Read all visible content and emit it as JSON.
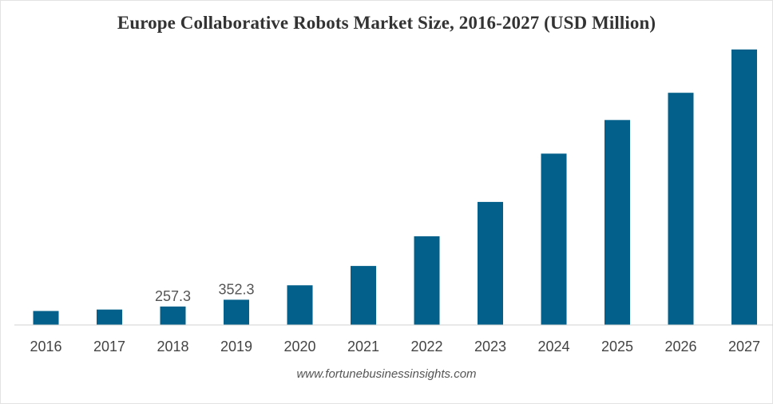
{
  "title": "Europe Collaborative Robots Market Size, 2016-2027 (USD Million)",
  "source": "www.fortunebusinessinsights.com",
  "colors": {
    "bar": "#03608a",
    "axis": "#d0d0d0"
  },
  "chart_data": {
    "type": "bar",
    "title": "Europe Collaborative Robots Market Size, 2016-2027 (USD Million)",
    "xlabel": "",
    "ylabel": "",
    "categories": [
      "2016",
      "2017",
      "2018",
      "2019",
      "2020",
      "2021",
      "2022",
      "2023",
      "2024",
      "2025",
      "2026",
      "2027"
    ],
    "values": [
      195,
      215,
      257.3,
      352.3,
      555,
      825,
      1240,
      1720,
      2395,
      2865,
      3245,
      3850
    ],
    "data_labels": [
      "",
      "",
      "257.3",
      "352.3",
      "",
      "",
      "",
      "",
      "",
      "",
      "",
      ""
    ],
    "ylim": [
      0,
      3850
    ],
    "grid": false,
    "legend": "none"
  }
}
